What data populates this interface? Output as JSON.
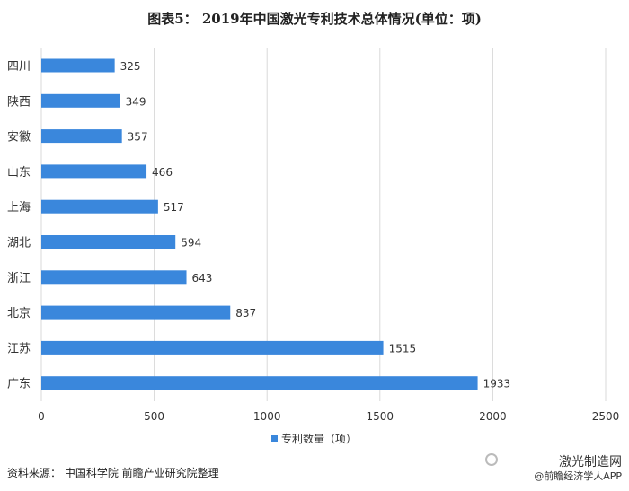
{
  "chart_data": {
    "type": "bar",
    "orientation": "horizontal",
    "title": "图表5： 2019年中国激光专利技术总体情况(单位：项)",
    "categories": [
      "四川",
      "陕西",
      "安徽",
      "山东",
      "上海",
      "湖北",
      "浙江",
      "北京",
      "江苏",
      "广东"
    ],
    "series": [
      {
        "name": "专利数量（项）",
        "values": [
          325,
          349,
          357,
          466,
          517,
          594,
          643,
          837,
          1515,
          1933
        ]
      }
    ],
    "xlim": [
      0,
      2500
    ],
    "xticks": [
      0,
      500,
      1000,
      1500,
      2000,
      2500
    ],
    "grid": true,
    "legend": "bottom",
    "colors": {
      "bar": "#3a87dc",
      "grid": "#d9d9d9"
    }
  },
  "source": "资料来源： 中国科学院 前瞻产业研究院整理",
  "watermark": {
    "line1": "激光制造网",
    "line2": "@前瞻经济学人APP"
  }
}
